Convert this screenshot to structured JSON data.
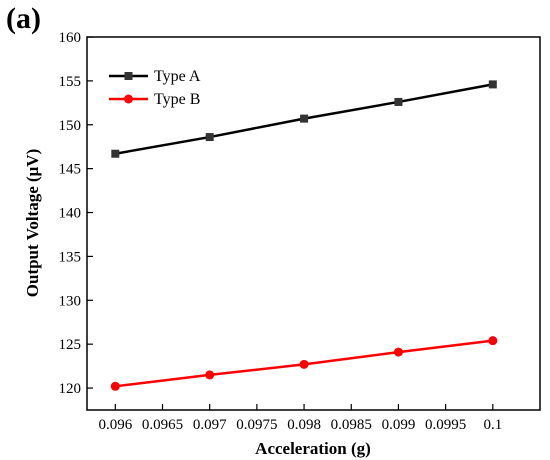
{
  "panel_label": "(a)",
  "chart_data": {
    "type": "line",
    "title": "",
    "xlabel": "Acceleration (g)",
    "ylabel": "Output Voltage (μV)",
    "x": [
      0.096,
      0.097,
      0.098,
      0.099,
      0.1
    ],
    "xlim": [
      0.0957,
      0.1005
    ],
    "ylim": [
      117.5,
      160
    ],
    "x_ticks": [
      0.096,
      0.0965,
      0.097,
      0.0975,
      0.098,
      0.0985,
      0.099,
      0.0995,
      0.1
    ],
    "x_tick_labels": [
      "0.096",
      "0.0965",
      "0.097",
      "0.0975",
      "0.098",
      "0.0985",
      "0.099",
      "0.0995",
      "0.1"
    ],
    "y_ticks": [
      120,
      125,
      130,
      135,
      140,
      145,
      150,
      155,
      160
    ],
    "y_tick_labels": [
      "120",
      "125",
      "130",
      "135",
      "140",
      "145",
      "150",
      "155",
      "160"
    ],
    "grid": false,
    "legend_position": "top-left",
    "series": [
      {
        "name": "Type A",
        "marker": "square",
        "color": "#000000",
        "marker_color": "#333333",
        "values": [
          146.7,
          148.6,
          150.7,
          152.6,
          154.6
        ]
      },
      {
        "name": "Type B",
        "marker": "circle",
        "color": "#ff0000",
        "marker_color": "#ff0000",
        "values": [
          120.2,
          121.5,
          122.7,
          124.1,
          125.4
        ]
      }
    ]
  }
}
